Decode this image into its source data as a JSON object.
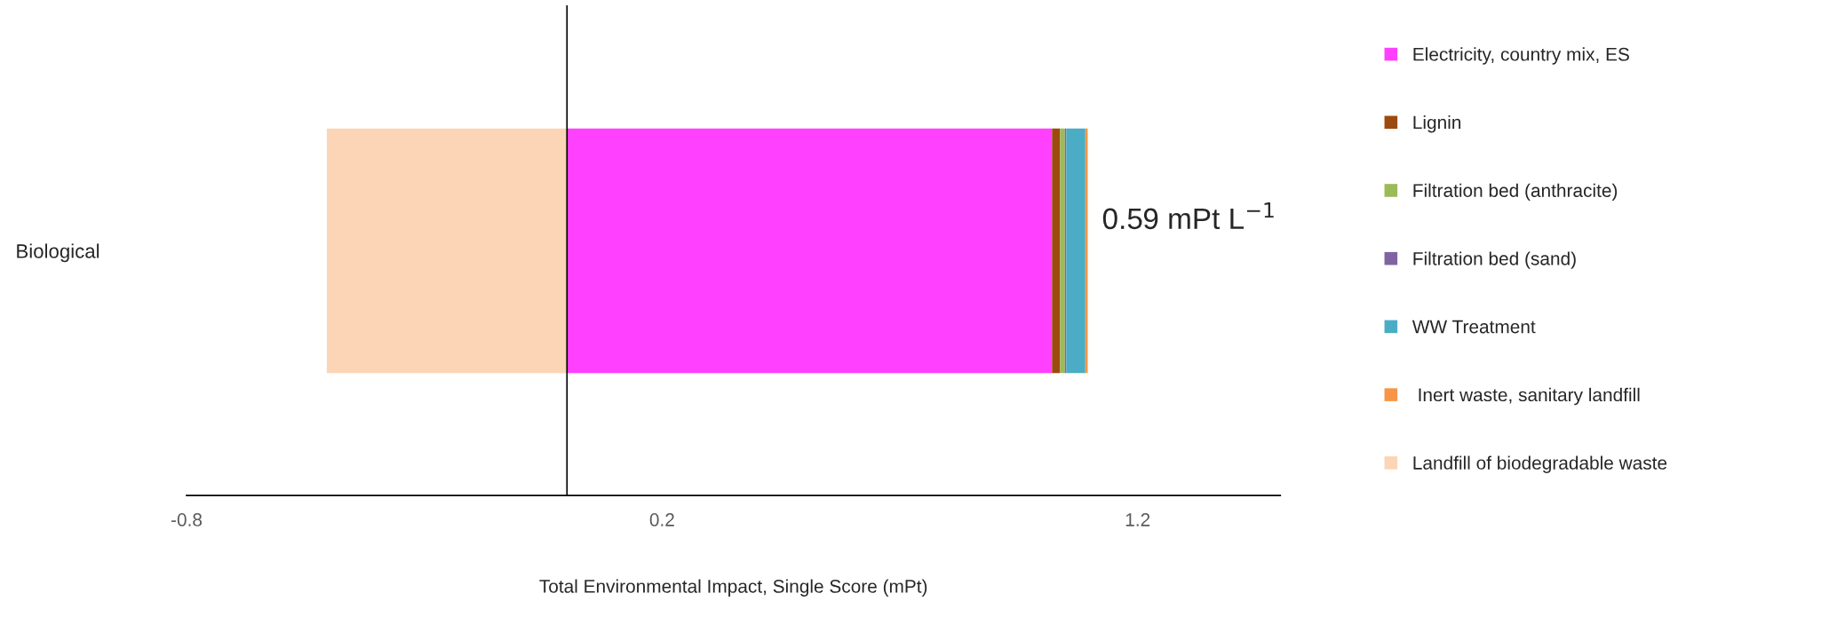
{
  "chart_data": {
    "type": "bar",
    "orientation": "horizontal",
    "stacked": true,
    "categories": [
      "Biological"
    ],
    "series": [
      {
        "name": "Electricity, country mix, ES",
        "color": "#ff40ff",
        "values": [
          1.02
        ]
      },
      {
        "name": "Lignin",
        "color": "#9c4a0e",
        "values": [
          0.017
        ]
      },
      {
        "name": "Filtration bed (anthracite)",
        "color": "#9bbb59",
        "values": [
          0.01
        ]
      },
      {
        "name": "Filtration bed (sand)",
        "color": "#8064a2",
        "values": [
          0.003
        ]
      },
      {
        "name": "WW Treatment",
        "color": "#4bacc6",
        "values": [
          0.04
        ]
      },
      {
        "name": " Inert waste, sanitary landfill",
        "color": "#f79646",
        "values": [
          0.005
        ]
      },
      {
        "name": "Landfill of biodegradable waste",
        "color": "#fbd5b5",
        "values": [
          -0.505
        ]
      }
    ],
    "xlim": [
      -0.8,
      1.5
    ],
    "xticks": [
      -0.8,
      0.2,
      1.2
    ],
    "xlabel": "Total Environmental Impact, Single Score (mPt)",
    "annotations": [
      "0.59 mPt L$^{−1}$"
    ],
    "legend": "right",
    "grid": false
  }
}
